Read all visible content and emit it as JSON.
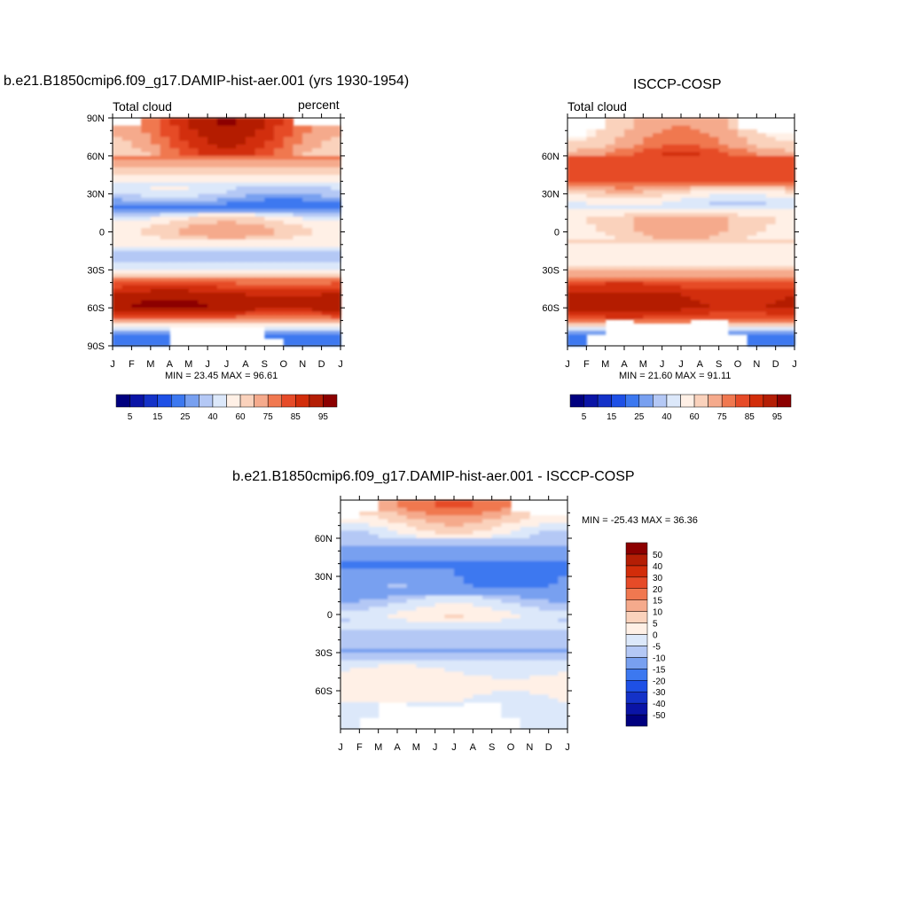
{
  "titles": {
    "p1": "b.e21.B1850cmip6.f09_g17.DAMIP-hist-aer.001 (yrs 1930-1954)",
    "p2": "ISCCP-COSP",
    "p3": "b.e21.B1850cmip6.f09_g17.DAMIP-hist-aer.001 - ISCCP-COSP"
  },
  "left_labels": {
    "p1": "Total cloud",
    "p2": "Total cloud"
  },
  "right_labels": {
    "p1": "percent"
  },
  "stats": {
    "p1": "MIN =  23.45 MAX =  96.61",
    "p2": "MIN =  21.60 MAX =  91.11",
    "p3": "MIN = -25.43 MAX =  36.36"
  },
  "months": [
    "J",
    "F",
    "M",
    "A",
    "M",
    "J",
    "J",
    "A",
    "S",
    "O",
    "N",
    "D",
    "J"
  ],
  "lat_ticks_full": [
    "90N",
    "60N",
    "30N",
    "0",
    "30S",
    "60S",
    "90S"
  ],
  "lat_ticks_inner": [
    "60N",
    "30N",
    "0",
    "30S",
    "60S"
  ],
  "colorbar_abs": {
    "colors": [
      "#00007f",
      "#0a14a6",
      "#1432c8",
      "#1e50e6",
      "#3c78f0",
      "#78a0f0",
      "#b4c8f5",
      "#dce8fa",
      "#fff0e6",
      "#fad2bc",
      "#f5aa8c",
      "#f07850",
      "#e64b28",
      "#d22d0a",
      "#b41e05",
      "#8c0000"
    ],
    "tick_labels": [
      "5",
      "15",
      "25",
      "40",
      "60",
      "75",
      "85",
      "95"
    ]
  },
  "colorbar_diff": {
    "colors": [
      "#00007f",
      "#0a14a6",
      "#1432c8",
      "#1e50e6",
      "#3c78f0",
      "#78a0f0",
      "#b4c8f5",
      "#dce8fa",
      "#fff0e6",
      "#fad2bc",
      "#f5aa8c",
      "#f07850",
      "#e64b28",
      "#d22d0a",
      "#b41e05",
      "#8c0000"
    ],
    "tick_labels": [
      "50",
      "40",
      "30",
      "20",
      "15",
      "10",
      "5",
      "0",
      "-5",
      "-10",
      "-15",
      "-20",
      "-30",
      "-40",
      "-50"
    ]
  },
  "chart_data": [
    {
      "type": "heatmap",
      "title": "b.e21.B1850cmip6.f09_g17.DAMIP-hist-aer.001 (yrs 1930-1954)",
      "variable": "Total cloud",
      "units": "percent",
      "x": [
        "J",
        "F",
        "M",
        "A",
        "M",
        "J",
        "J",
        "A",
        "S",
        "O",
        "N",
        "D",
        "J"
      ],
      "y": [
        "90N",
        "60N",
        "30N",
        "0",
        "30S",
        "60S",
        "90S"
      ],
      "min": 23.45,
      "max": 96.61,
      "zonal_mean_profile": [
        {
          "lat": 85,
          "value": 80
        },
        {
          "lat": 70,
          "value": 75
        },
        {
          "lat": 60,
          "value": 70
        },
        {
          "lat": 50,
          "value": 62
        },
        {
          "lat": 40,
          "value": 50
        },
        {
          "lat": 30,
          "value": 42
        },
        {
          "lat": 20,
          "value": 28
        },
        {
          "lat": 10,
          "value": 55
        },
        {
          "lat": 0,
          "value": 62
        },
        {
          "lat": -10,
          "value": 52
        },
        {
          "lat": -20,
          "value": 38
        },
        {
          "lat": -30,
          "value": 52
        },
        {
          "lat": -40,
          "value": 75
        },
        {
          "lat": -50,
          "value": 90
        },
        {
          "lat": -60,
          "value": 93
        },
        {
          "lat": -70,
          "value": 70
        },
        {
          "lat": -80,
          "value": 30
        }
      ]
    },
    {
      "type": "heatmap",
      "title": "ISCCP-COSP",
      "variable": "Total cloud",
      "x": [
        "J",
        "F",
        "M",
        "A",
        "M",
        "J",
        "J",
        "A",
        "S",
        "O",
        "N",
        "D",
        "J"
      ],
      "y": [
        "60N",
        "30N",
        "0",
        "30S",
        "60S"
      ],
      "min": 21.6,
      "max": 91.11,
      "zonal_mean_profile": [
        {
          "lat": 85,
          "value": 60
        },
        {
          "lat": 70,
          "value": 65
        },
        {
          "lat": 60,
          "value": 75
        },
        {
          "lat": 50,
          "value": 78
        },
        {
          "lat": 40,
          "value": 75
        },
        {
          "lat": 30,
          "value": 55
        },
        {
          "lat": 20,
          "value": 45
        },
        {
          "lat": 10,
          "value": 62
        },
        {
          "lat": 0,
          "value": 60
        },
        {
          "lat": -10,
          "value": 55
        },
        {
          "lat": -20,
          "value": 50
        },
        {
          "lat": -30,
          "value": 60
        },
        {
          "lat": -40,
          "value": 78
        },
        {
          "lat": -50,
          "value": 88
        },
        {
          "lat": -60,
          "value": 90
        },
        {
          "lat": -70,
          "value": 75
        },
        {
          "lat": -80,
          "value": 30
        }
      ]
    },
    {
      "type": "heatmap",
      "title": "b.e21.B1850cmip6.f09_g17.DAMIP-hist-aer.001 - ISCCP-COSP",
      "x": [
        "J",
        "F",
        "M",
        "A",
        "M",
        "J",
        "J",
        "A",
        "S",
        "O",
        "N",
        "D",
        "J"
      ],
      "y": [
        "60N",
        "30N",
        "0",
        "30S",
        "60S"
      ],
      "min": -25.43,
      "max": 36.36,
      "zonal_mean_profile": [
        {
          "lat": 85,
          "value": 20
        },
        {
          "lat": 70,
          "value": 5
        },
        {
          "lat": 60,
          "value": -5
        },
        {
          "lat": 50,
          "value": -18
        },
        {
          "lat": 40,
          "value": -22
        },
        {
          "lat": 30,
          "value": -20
        },
        {
          "lat": 20,
          "value": -18
        },
        {
          "lat": 10,
          "value": -8
        },
        {
          "lat": 0,
          "value": 2
        },
        {
          "lat": -10,
          "value": -5
        },
        {
          "lat": -20,
          "value": -12
        },
        {
          "lat": -30,
          "value": -15
        },
        {
          "lat": -40,
          "value": -3
        },
        {
          "lat": -50,
          "value": 3
        },
        {
          "lat": -60,
          "value": 3
        },
        {
          "lat": -70,
          "value": 0
        },
        {
          "lat": -80,
          "value": -5
        }
      ]
    }
  ]
}
